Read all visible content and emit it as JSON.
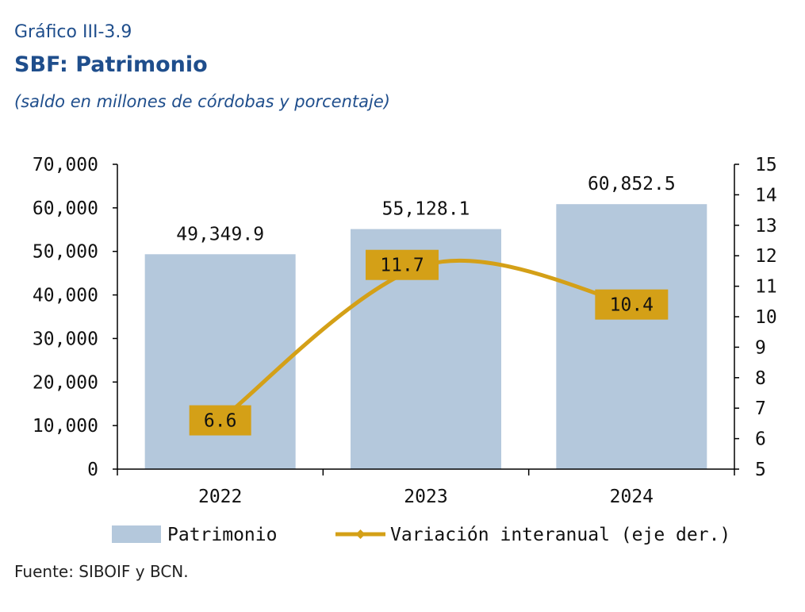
{
  "figure": {
    "label": "Gráfico III-3.9",
    "title": "SBF: Patrimonio",
    "subtitle": "(saldo en millones de córdobas y porcentaje)",
    "source": "Fuente: SIBOIF y BCN."
  },
  "chart_data": {
    "type": "bar",
    "categories": [
      "2022",
      "2023",
      "2024"
    ],
    "series": [
      {
        "name": "Patrimonio",
        "type": "bar",
        "axis": "left",
        "values": [
          49349.9,
          55128.1,
          60852.5
        ],
        "labels": [
          "49,349.9",
          "55,128.1",
          "60,852.5"
        ],
        "color": "#b4c8dc"
      },
      {
        "name": "Variación interanual (eje der.)",
        "type": "line",
        "axis": "right",
        "values": [
          6.6,
          11.7,
          10.4
        ],
        "labels": [
          "6.6",
          "11.7",
          "10.4"
        ],
        "color": "#d4a017"
      }
    ],
    "y_left": {
      "range": [
        0,
        70000
      ],
      "ticks": [
        0,
        10000,
        20000,
        30000,
        40000,
        50000,
        60000,
        70000
      ],
      "tick_labels": [
        "0",
        "10,000",
        "20,000",
        "30,000",
        "40,000",
        "50,000",
        "60,000",
        "70,000"
      ]
    },
    "y_right": {
      "range": [
        5,
        15
      ],
      "ticks": [
        5,
        6,
        7,
        8,
        9,
        10,
        11,
        12,
        13,
        14,
        15
      ],
      "tick_labels": [
        "5",
        "6",
        "7",
        "8",
        "9",
        "10",
        "11",
        "12",
        "13",
        "14",
        "15"
      ]
    },
    "grid": false,
    "legend": "bottom"
  }
}
